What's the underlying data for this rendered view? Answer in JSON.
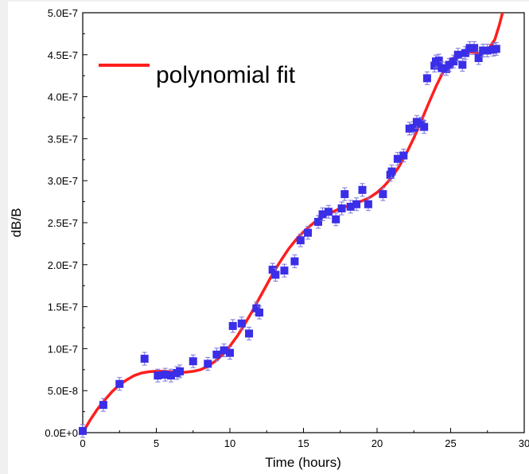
{
  "chart_data": {
    "type": "scatter",
    "xlabel": "Time (hours)",
    "ylabel": "dB/B",
    "xlim": [
      0,
      30
    ],
    "ylim": [
      0,
      5e-07
    ],
    "xticks": [
      0,
      5,
      10,
      15,
      20,
      25,
      30
    ],
    "xtick_labels": [
      "0",
      "5",
      "10",
      "15",
      "20",
      "25",
      "30"
    ],
    "yticks": [
      0,
      5e-08,
      1e-07,
      1.5e-07,
      2e-07,
      2.5e-07,
      3e-07,
      3.5e-07,
      4e-07,
      4.5e-07,
      5e-07
    ],
    "ytick_labels": [
      "0.0E+0",
      "5.0E-8",
      "1.0E-7",
      "1.5E-7",
      "2.0E-7",
      "2.5E-7",
      "3.0E-7",
      "3.5E-7",
      "4.0E-7",
      "4.5E-7",
      "5.0E-7"
    ],
    "grid": false,
    "legend_position": "top-left",
    "series": [
      {
        "kind": "points",
        "color": "#3a2ee8",
        "x": [
          0.0,
          1.4,
          2.5,
          4.2,
          5.1,
          5.6,
          6.0,
          6.4,
          6.6,
          7.5,
          8.5,
          9.1,
          9.6,
          10.0,
          10.2,
          10.8,
          11.3,
          11.8,
          12.0,
          12.9,
          13.1,
          13.7,
          14.4,
          14.8,
          15.3,
          16.0,
          16.3,
          16.7,
          17.2,
          17.6,
          17.8,
          18.2,
          18.6,
          19.0,
          19.4,
          20.4,
          20.9,
          21.0,
          21.4,
          21.8,
          22.2,
          22.5,
          22.7,
          23.0,
          23.2,
          23.4,
          23.9,
          24.0,
          24.2,
          24.4,
          24.7,
          24.9,
          25.2,
          25.5,
          25.8,
          26.0,
          26.3,
          26.6,
          26.9,
          27.2,
          27.5,
          27.9,
          28.1
        ],
        "y": [
          2e-09,
          3.3e-08,
          5.8e-08,
          8.8e-08,
          6.8e-08,
          6.9e-08,
          6.8e-08,
          7.1e-08,
          7.3e-08,
          8.5e-08,
          8.2e-08,
          9.3e-08,
          9.8e-08,
          9.5e-08,
          1.27e-07,
          1.3e-07,
          1.18e-07,
          1.48e-07,
          1.43e-07,
          1.94e-07,
          1.88e-07,
          1.93e-07,
          2.04e-07,
          2.29e-07,
          2.38e-07,
          2.51e-07,
          2.6e-07,
          2.63e-07,
          2.54e-07,
          2.67e-07,
          2.84e-07,
          2.69e-07,
          2.72e-07,
          2.89e-07,
          2.72e-07,
          2.84e-07,
          3.07e-07,
          3.11e-07,
          3.26e-07,
          3.3e-07,
          3.62e-07,
          3.63e-07,
          3.7e-07,
          3.68e-07,
          3.64e-07,
          4.22e-07,
          4.37e-07,
          4.42e-07,
          4.43e-07,
          4.34e-07,
          4.33e-07,
          4.38e-07,
          4.42e-07,
          4.5e-07,
          4.38e-07,
          4.52e-07,
          4.58e-07,
          4.58e-07,
          4.46e-07,
          4.55e-07,
          4.55e-07,
          4.56e-07,
          4.57e-07
        ]
      },
      {
        "kind": "curve",
        "name": "polynomial fit",
        "color": "#ff1e1e",
        "x": [
          0,
          0.5,
          1,
          1.5,
          2,
          2.5,
          3,
          3.5,
          4,
          4.5,
          5,
          5.5,
          6,
          6.5,
          7,
          7.5,
          8,
          8.5,
          9,
          9.5,
          10,
          10.5,
          11,
          11.5,
          12,
          12.5,
          13,
          13.5,
          14,
          14.5,
          15,
          15.5,
          16,
          16.5,
          17,
          17.5,
          18,
          18.5,
          19,
          19.5,
          20,
          20.5,
          21,
          21.5,
          22,
          22.5,
          23,
          23.5,
          24,
          24.5,
          25,
          25.5,
          26,
          26.5,
          27,
          27.5,
          28,
          28.3,
          28.6
        ],
        "y": [
          0,
          1.5e-08,
          2.8e-08,
          3.9e-08,
          4.9e-08,
          5.7e-08,
          6.3e-08,
          6.8e-08,
          7.1e-08,
          7.25e-08,
          7.3e-08,
          7.3e-08,
          7.25e-08,
          7.2e-08,
          7.2e-08,
          7.3e-08,
          7.5e-08,
          7.9e-08,
          8.5e-08,
          9.3e-08,
          1.03e-07,
          1.15e-07,
          1.29e-07,
          1.44e-07,
          1.6e-07,
          1.76e-07,
          1.92e-07,
          2.06e-07,
          2.19e-07,
          2.3e-07,
          2.39e-07,
          2.47e-07,
          2.54e-07,
          2.59e-07,
          2.63e-07,
          2.67e-07,
          2.7e-07,
          2.73e-07,
          2.76e-07,
          2.8e-07,
          2.86e-07,
          2.94e-07,
          3.04e-07,
          3.17e-07,
          3.33e-07,
          3.51e-07,
          3.71e-07,
          3.92e-07,
          4.12e-07,
          4.3e-07,
          4.43e-07,
          4.51e-07,
          4.54e-07,
          4.53e-07,
          4.52e-07,
          4.55e-07,
          4.68e-07,
          4.85e-07,
          5.05e-07
        ]
      }
    ]
  }
}
